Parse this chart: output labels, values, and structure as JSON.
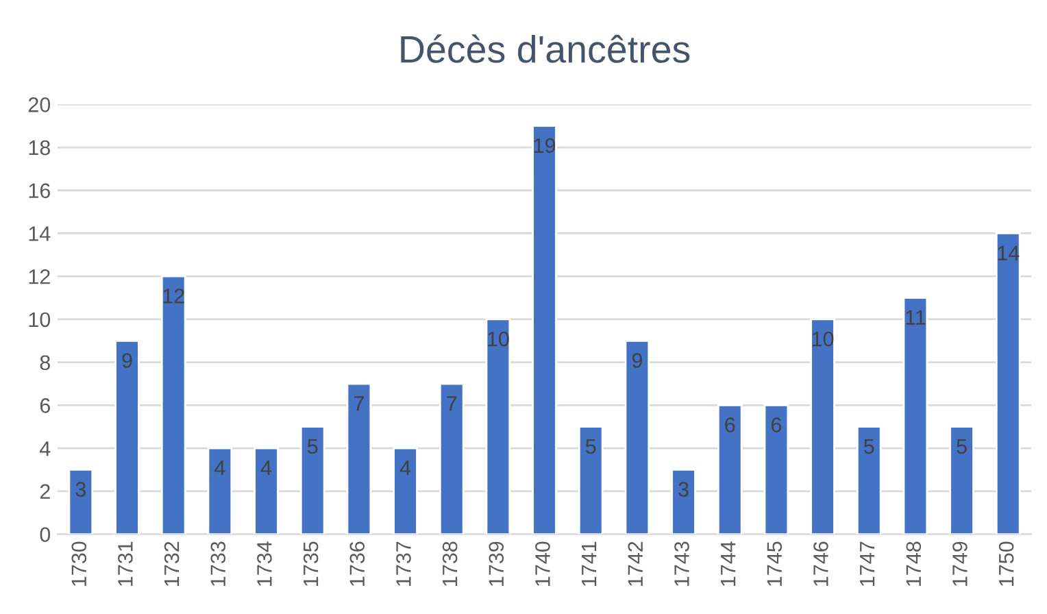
{
  "chart_data": {
    "type": "bar",
    "title": "Décès d'ancêtres",
    "categories": [
      "1730",
      "1731",
      "1732",
      "1733",
      "1734",
      "1735",
      "1736",
      "1737",
      "1738",
      "1739",
      "1740",
      "1741",
      "1742",
      "1743",
      "1744",
      "1745",
      "1746",
      "1747",
      "1748",
      "1749",
      "1750"
    ],
    "values": [
      3,
      9,
      12,
      4,
      4,
      5,
      7,
      4,
      7,
      10,
      19,
      5,
      9,
      3,
      6,
      6,
      10,
      5,
      11,
      5,
      14
    ],
    "color": "#4472c4",
    "ylim": [
      0,
      20
    ],
    "yticks": [
      0,
      2,
      4,
      6,
      8,
      10,
      12,
      14,
      16,
      18,
      20
    ],
    "grid": "y",
    "data_labels": true
  }
}
